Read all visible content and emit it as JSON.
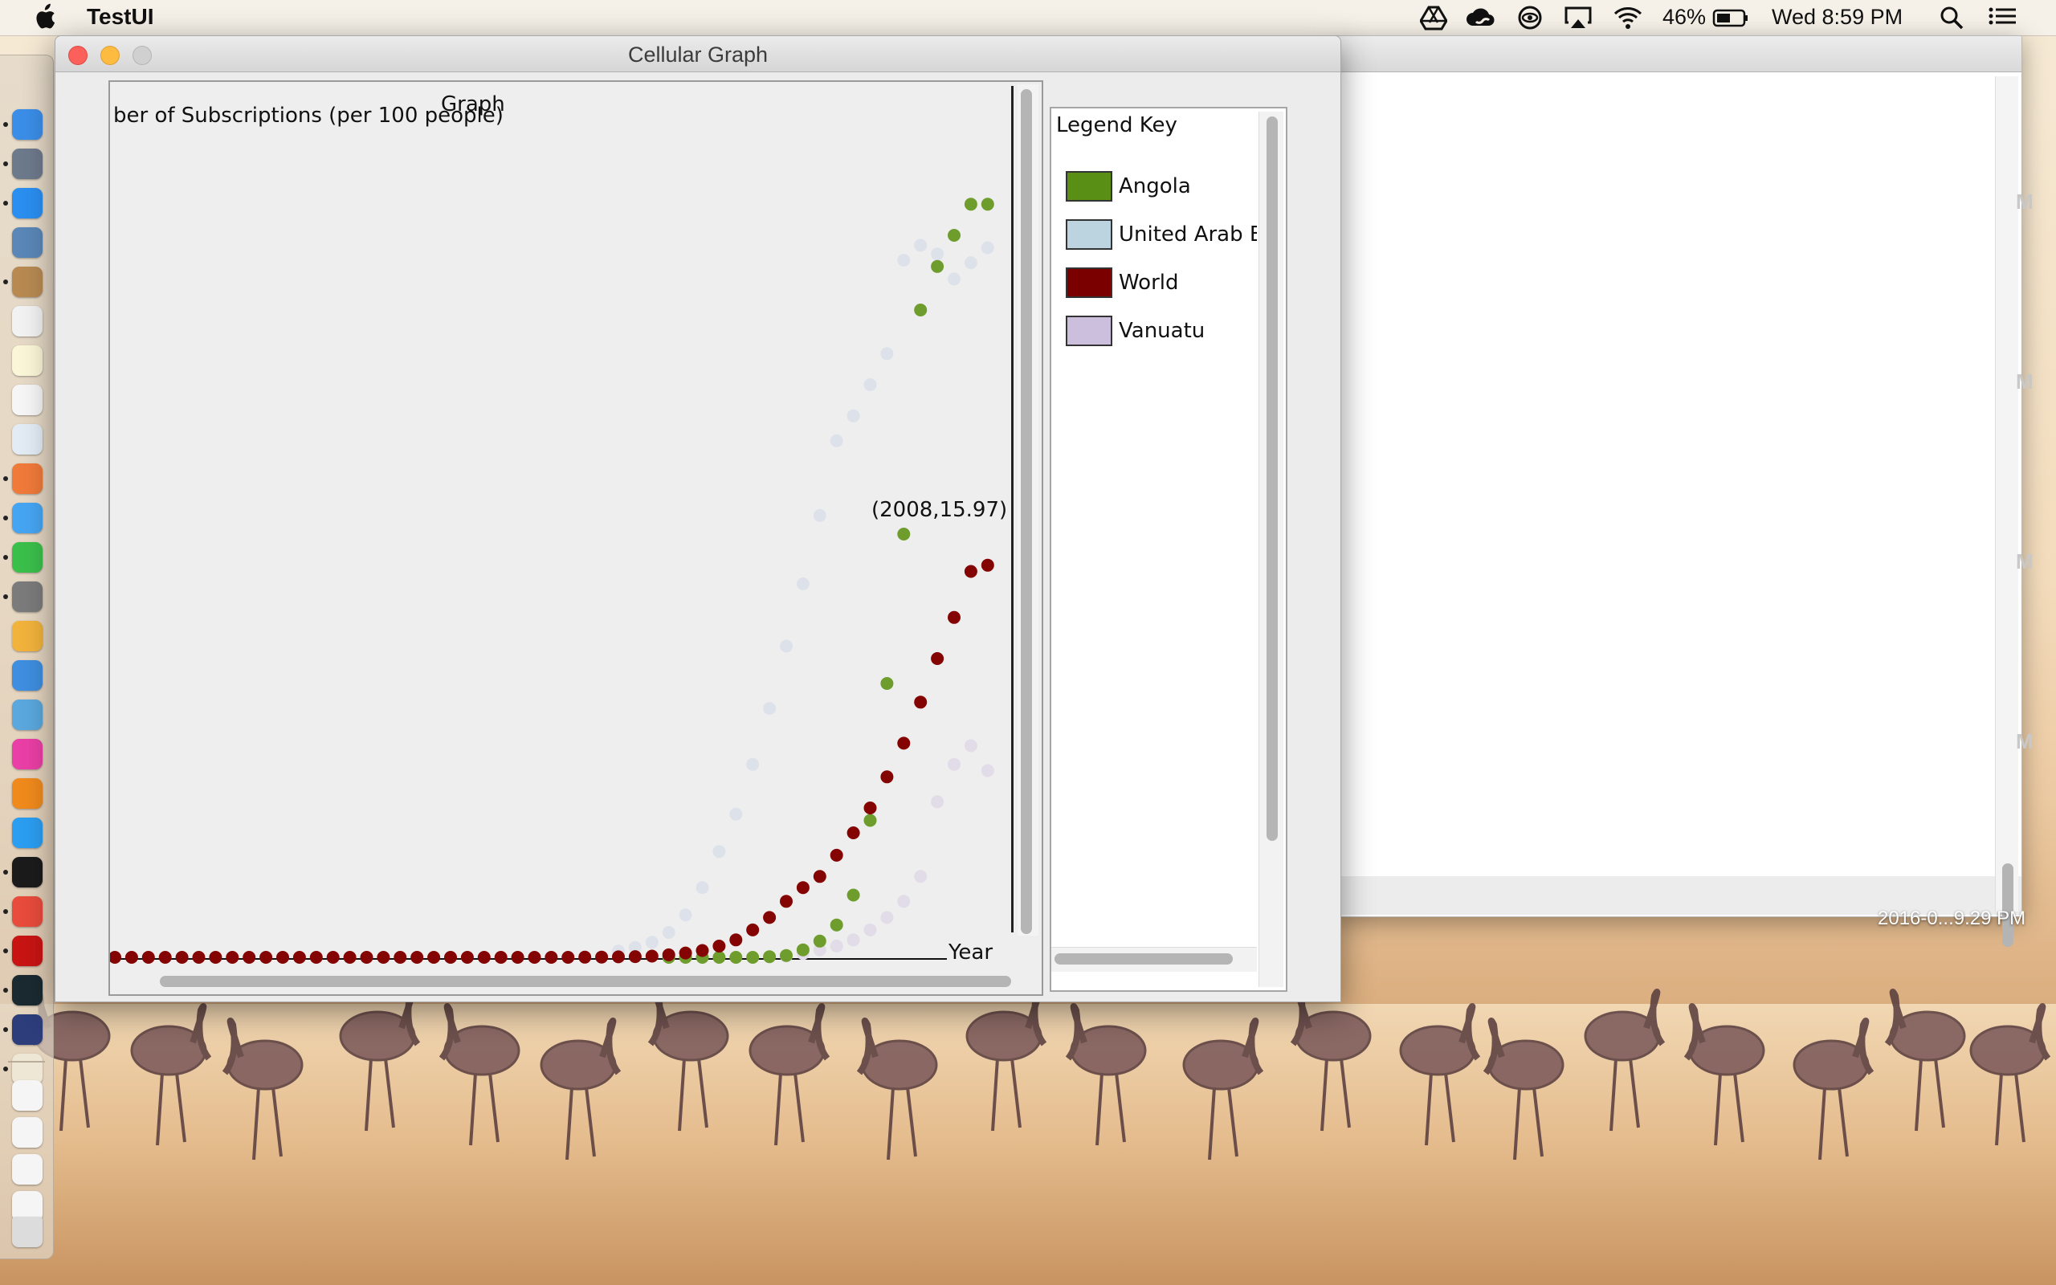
{
  "menubar": {
    "app_name": "TestUI",
    "battery": "46%",
    "clock": "Wed 8:59 PM",
    "icons": [
      "apple-icon",
      "google-drive-icon",
      "creative-cloud-icon",
      "vision-icon",
      "airplay-icon",
      "wifi-icon",
      "battery-icon",
      "spotlight-search-icon",
      "notification-center-icon"
    ]
  },
  "window": {
    "title": "Cellular Graph"
  },
  "chart": {
    "title": "Graph",
    "ylabel": "ber of Subscriptions (per 100 people)",
    "xlabel": "Year",
    "tooltip": "(2008,15.97)"
  },
  "legend": {
    "title": "Legend Key",
    "items": [
      {
        "label": "Angola",
        "color": "#5a8f16"
      },
      {
        "label": "United Arab Er",
        "color": "#bcd3e0"
      },
      {
        "label": "World",
        "color": "#7a0000"
      },
      {
        "label": "Vanuatu",
        "color": "#cbbfdd"
      }
    ]
  },
  "background_window": {
    "side_labels": [
      "M",
      "M",
      "M",
      "M"
    ]
  },
  "desktop": {
    "file_label": "2016-0...9.29 PM"
  },
  "chart_data": {
    "type": "scatter",
    "title": "Graph",
    "xlabel": "Year",
    "ylabel": "ber of Subscriptions (per 100 people)",
    "x_start": 1960,
    "x_end": 2012,
    "series": [
      {
        "name": "Angola",
        "color": "#6e9d2e",
        "x": [
          1993,
          1994,
          1995,
          1996,
          1997,
          1998,
          1999,
          2000,
          2001,
          2002,
          2003,
          2004,
          2005,
          2006,
          2007,
          2008,
          2009,
          2010,
          2011,
          2012
        ],
        "y": [
          0,
          0,
          0,
          0,
          0,
          0,
          0.05,
          0.15,
          0.6,
          1.3,
          2.6,
          5.0,
          11.0,
          22.0,
          34.0,
          52.0,
          55.5,
          58.0,
          60.5,
          60.5
        ]
      },
      {
        "name": "United Arab Er",
        "color": "#dde2ea",
        "x": [
          1990,
          1991,
          1992,
          1993,
          1994,
          1995,
          1996,
          1997,
          1998,
          1999,
          2000,
          2001,
          2002,
          2003,
          2004,
          2005,
          2006,
          2007,
          2008,
          2009,
          2010,
          2011,
          2012
        ],
        "y": [
          0.5,
          0.8,
          1.2,
          2.0,
          3.4,
          5.6,
          8.5,
          11.5,
          15.5,
          20.0,
          25.0,
          30.0,
          35.5,
          41.5,
          43.5,
          46.0,
          48.5,
          56.0,
          57.2,
          56.5,
          54.5,
          55.8,
          57.0
        ]
      },
      {
        "name": "World",
        "color": "#840404",
        "x": [
          1960,
          1961,
          1962,
          1963,
          1964,
          1965,
          1966,
          1967,
          1968,
          1969,
          1970,
          1971,
          1972,
          1973,
          1974,
          1975,
          1976,
          1977,
          1978,
          1979,
          1980,
          1981,
          1982,
          1983,
          1984,
          1985,
          1986,
          1987,
          1988,
          1989,
          1990,
          1991,
          1992,
          1993,
          1994,
          1995,
          1996,
          1997,
          1998,
          1999,
          2000,
          2001,
          2002,
          2003,
          2004,
          2005,
          2006,
          2007,
          2008,
          2009,
          2010,
          2011,
          2012
        ],
        "y": [
          0,
          0,
          0,
          0,
          0,
          0,
          0,
          0,
          0,
          0,
          0,
          0,
          0,
          0,
          0,
          0,
          0,
          0,
          0,
          0,
          0,
          0,
          0,
          0,
          0,
          0,
          0,
          0,
          0.01,
          0.02,
          0.04,
          0.06,
          0.1,
          0.2,
          0.35,
          0.55,
          0.9,
          1.4,
          2.2,
          3.2,
          4.5,
          5.6,
          6.5,
          8.2,
          10.0,
          12.0,
          14.5,
          17.2,
          20.5,
          24.0,
          27.3,
          31.0,
          31.5
        ]
      },
      {
        "name": "Vanuatu",
        "color": "#e2dce9",
        "x": [
          2000,
          2001,
          2002,
          2003,
          2004,
          2005,
          2006,
          2007,
          2008,
          2009,
          2010,
          2011,
          2012
        ],
        "y": [
          0.1,
          0.3,
          0.6,
          0.9,
          1.4,
          2.2,
          3.2,
          4.5,
          6.5,
          12.5,
          15.5,
          17.0,
          15.0
        ]
      }
    ]
  }
}
